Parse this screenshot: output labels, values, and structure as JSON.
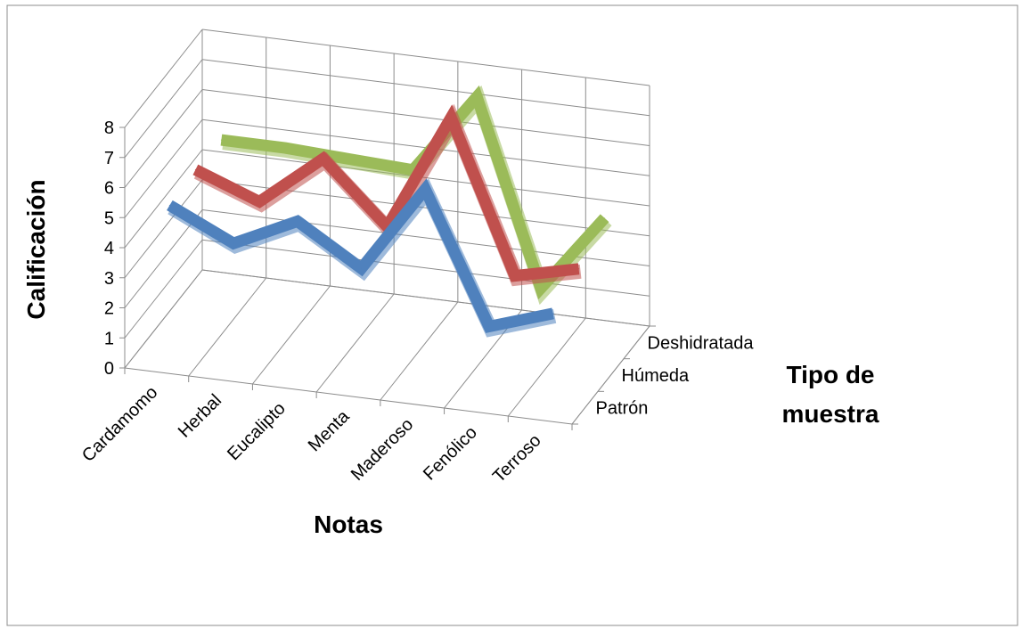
{
  "chart_data": {
    "type": "line",
    "subtype": "3d-line",
    "categories": [
      "Cardamomo",
      "Herbal",
      "Eucalipto",
      "Menta",
      "Maderoso",
      "Fenólico",
      "Terroso"
    ],
    "series": [
      {
        "name": "Patrón",
        "values": [
          5,
          4,
          5,
          3.7,
          6.6,
          2.3,
          3
        ],
        "color": "#4F81BD"
      },
      {
        "name": "Húmeda",
        "values": [
          5.1,
          4.3,
          6,
          4,
          7.9,
          2.9,
          3.4
        ],
        "color": "#C0504D"
      },
      {
        "name": "Deshidratada",
        "values": [
          5,
          5,
          4.9,
          4.8,
          7.5,
          1.4,
          4
        ],
        "color": "#9BBB59"
      }
    ],
    "xlabel": "Notas",
    "ylabel": "Calificación",
    "zlabel": "Tipo de muestra",
    "ylim": [
      0,
      8
    ],
    "yticks": [
      "0",
      "1",
      "2",
      "3",
      "4",
      "5",
      "6",
      "7",
      "8"
    ],
    "grid": true,
    "legend": "none"
  }
}
